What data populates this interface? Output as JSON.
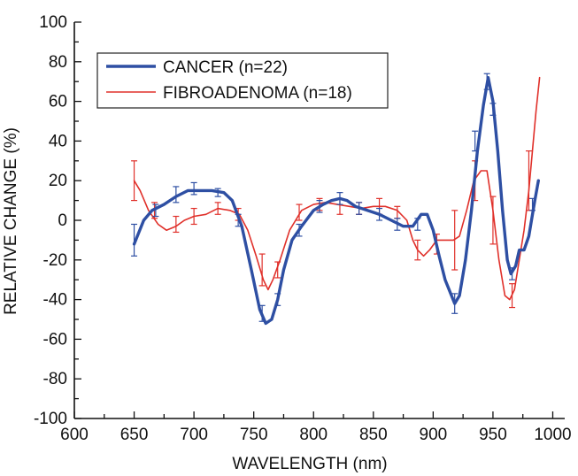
{
  "chart_data": {
    "type": "line",
    "title": "",
    "xlabel": "WAVELENGTH (nm)",
    "ylabel": "RELATIVE CHANGE (%)",
    "xlim": [
      600,
      1010
    ],
    "ylim": [
      -100,
      100
    ],
    "xticks": [
      600,
      650,
      700,
      750,
      800,
      850,
      900,
      950,
      1000
    ],
    "yticks": [
      -100,
      -80,
      -60,
      -40,
      -20,
      0,
      20,
      40,
      60,
      80,
      100
    ],
    "xtick_labels": [
      "600",
      "650",
      "700",
      "750",
      "800",
      "850",
      "900",
      "950",
      "1000"
    ],
    "ytick_labels": [
      "-100",
      "-80",
      "-60",
      "-40",
      "-20",
      "0",
      "20",
      "40",
      "60",
      "80",
      "100"
    ],
    "grid": false,
    "legend_position": "top-left",
    "series": [
      {
        "name": "CANCER (n=22)",
        "color": "#2e4fa3",
        "curve": [
          [
            650,
            -12
          ],
          [
            658,
            0
          ],
          [
            665,
            5
          ],
          [
            675,
            8
          ],
          [
            685,
            12
          ],
          [
            695,
            15
          ],
          [
            705,
            15
          ],
          [
            715,
            15
          ],
          [
            725,
            14
          ],
          [
            732,
            10
          ],
          [
            740,
            -3
          ],
          [
            748,
            -25
          ],
          [
            755,
            -45
          ],
          [
            760,
            -52
          ],
          [
            765,
            -50
          ],
          [
            770,
            -40
          ],
          [
            775,
            -25
          ],
          [
            782,
            -10
          ],
          [
            790,
            -3
          ],
          [
            800,
            5
          ],
          [
            808,
            8
          ],
          [
            815,
            10
          ],
          [
            822,
            11
          ],
          [
            828,
            10
          ],
          [
            835,
            7
          ],
          [
            845,
            5
          ],
          [
            855,
            3
          ],
          [
            865,
            0
          ],
          [
            875,
            -3
          ],
          [
            883,
            -3
          ],
          [
            890,
            3
          ],
          [
            895,
            3
          ],
          [
            900,
            -5
          ],
          [
            905,
            -18
          ],
          [
            910,
            -30
          ],
          [
            918,
            -42
          ],
          [
            922,
            -38
          ],
          [
            927,
            -20
          ],
          [
            932,
            5
          ],
          [
            937,
            35
          ],
          [
            942,
            58
          ],
          [
            946,
            72
          ],
          [
            950,
            60
          ],
          [
            954,
            35
          ],
          [
            958,
            5
          ],
          [
            962,
            -20
          ],
          [
            965,
            -27
          ],
          [
            969,
            -23
          ],
          [
            972,
            -15
          ],
          [
            976,
            -15
          ],
          [
            980,
            -8
          ],
          [
            985,
            10
          ],
          [
            988,
            20
          ]
        ],
        "error_points": [
          {
            "x": 650,
            "y": -10,
            "err": 8
          },
          {
            "x": 668,
            "y": 5,
            "err": 3
          },
          {
            "x": 685,
            "y": 13,
            "err": 4
          },
          {
            "x": 700,
            "y": 16,
            "err": 3
          },
          {
            "x": 720,
            "y": 14,
            "err": 2
          },
          {
            "x": 737,
            "y": 0,
            "err": 3
          },
          {
            "x": 757,
            "y": -47,
            "err": 4
          },
          {
            "x": 770,
            "y": -40,
            "err": 3
          },
          {
            "x": 788,
            "y": -5,
            "err": 3
          },
          {
            "x": 805,
            "y": 7,
            "err": 3
          },
          {
            "x": 822,
            "y": 11,
            "err": 3
          },
          {
            "x": 838,
            "y": 6,
            "err": 3
          },
          {
            "x": 855,
            "y": 3,
            "err": 3
          },
          {
            "x": 870,
            "y": -2,
            "err": 3
          },
          {
            "x": 887,
            "y": -2,
            "err": 3
          },
          {
            "x": 918,
            "y": -42,
            "err": 5
          },
          {
            "x": 935,
            "y": 40,
            "err": 5
          },
          {
            "x": 945,
            "y": 70,
            "err": 4
          },
          {
            "x": 950,
            "y": 56,
            "err": 3
          },
          {
            "x": 966,
            "y": -27,
            "err": 3
          },
          {
            "x": 983,
            "y": 8,
            "err": 3
          }
        ]
      },
      {
        "name": "FIBROADENOMA (n=18)",
        "color": "#e0302a",
        "curve": [
          [
            650,
            20
          ],
          [
            655,
            15
          ],
          [
            662,
            5
          ],
          [
            670,
            -2
          ],
          [
            677,
            -5
          ],
          [
            685,
            -3
          ],
          [
            692,
            0
          ],
          [
            700,
            2
          ],
          [
            710,
            3
          ],
          [
            720,
            6
          ],
          [
            730,
            5
          ],
          [
            738,
            3
          ],
          [
            745,
            -5
          ],
          [
            752,
            -18
          ],
          [
            758,
            -30
          ],
          [
            762,
            -35
          ],
          [
            766,
            -30
          ],
          [
            772,
            -20
          ],
          [
            780,
            -5
          ],
          [
            790,
            5
          ],
          [
            800,
            8
          ],
          [
            810,
            9
          ],
          [
            820,
            8
          ],
          [
            830,
            7
          ],
          [
            840,
            6
          ],
          [
            850,
            7
          ],
          [
            860,
            7
          ],
          [
            870,
            5
          ],
          [
            878,
            0
          ],
          [
            883,
            -10
          ],
          [
            887,
            -15
          ],
          [
            892,
            -18
          ],
          [
            897,
            -15
          ],
          [
            903,
            -10
          ],
          [
            910,
            -10
          ],
          [
            917,
            -10
          ],
          [
            922,
            -8
          ],
          [
            928,
            5
          ],
          [
            934,
            20
          ],
          [
            940,
            25
          ],
          [
            945,
            25
          ],
          [
            950,
            5
          ],
          [
            955,
            -20
          ],
          [
            960,
            -38
          ],
          [
            964,
            -40
          ],
          [
            968,
            -35
          ],
          [
            972,
            -20
          ],
          [
            976,
            -5
          ],
          [
            980,
            15
          ],
          [
            983,
            35
          ],
          [
            986,
            55
          ],
          [
            989,
            72
          ]
        ],
        "error_points": [
          {
            "x": 650,
            "y": 20,
            "err": 10
          },
          {
            "x": 667,
            "y": 5,
            "err": 4
          },
          {
            "x": 685,
            "y": -2,
            "err": 4
          },
          {
            "x": 700,
            "y": 2,
            "err": 4
          },
          {
            "x": 720,
            "y": 6,
            "err": 3
          },
          {
            "x": 737,
            "y": 3,
            "err": 3
          },
          {
            "x": 757,
            "y": -25,
            "err": 8
          },
          {
            "x": 770,
            "y": -25,
            "err": 4
          },
          {
            "x": 788,
            "y": 4,
            "err": 4
          },
          {
            "x": 805,
            "y": 8,
            "err": 3
          },
          {
            "x": 822,
            "y": 7,
            "err": 4
          },
          {
            "x": 838,
            "y": 6,
            "err": 3
          },
          {
            "x": 855,
            "y": 7,
            "err": 4
          },
          {
            "x": 870,
            "y": 4,
            "err": 3
          },
          {
            "x": 887,
            "y": -15,
            "err": 5
          },
          {
            "x": 903,
            "y": -12,
            "err": 5
          },
          {
            "x": 918,
            "y": -10,
            "err": 15
          },
          {
            "x": 935,
            "y": 20,
            "err": 10
          },
          {
            "x": 950,
            "y": 0,
            "err": 12
          },
          {
            "x": 966,
            "y": -38,
            "err": 6
          },
          {
            "x": 980,
            "y": 20,
            "err": 15
          }
        ]
      }
    ]
  }
}
